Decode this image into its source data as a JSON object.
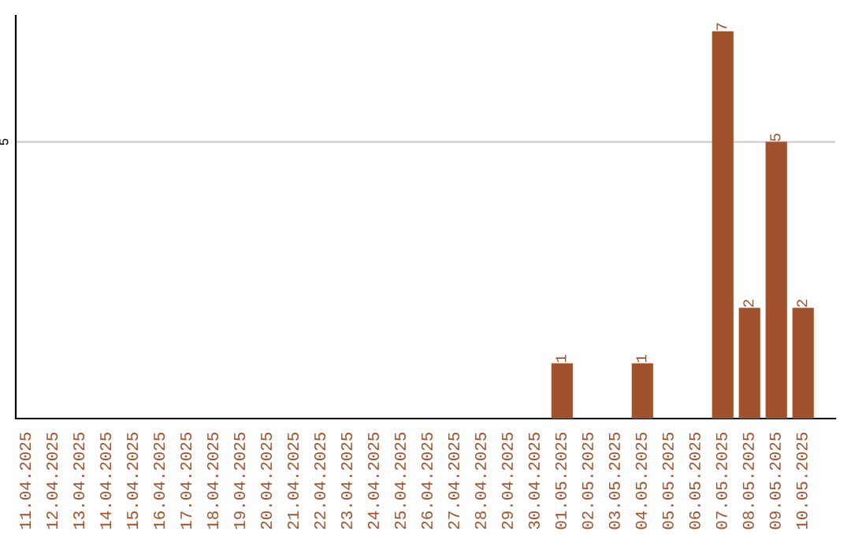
{
  "chart_data": {
    "type": "bar",
    "categories": [
      "11.04.2025",
      "12.04.2025",
      "13.04.2025",
      "14.04.2025",
      "15.04.2025",
      "16.04.2025",
      "17.04.2025",
      "18.04.2025",
      "19.04.2025",
      "20.04.2025",
      "21.04.2025",
      "22.04.2025",
      "23.04.2025",
      "24.04.2025",
      "25.04.2025",
      "26.04.2025",
      "27.04.2025",
      "28.04.2025",
      "29.04.2025",
      "30.04.2025",
      "01.05.2025",
      "02.05.2025",
      "03.05.2025",
      "04.05.2025",
      "05.05.2025",
      "06.05.2025",
      "07.05.2025",
      "08.05.2025",
      "09.05.2025",
      "10.05.2025"
    ],
    "values": [
      null,
      null,
      null,
      null,
      null,
      null,
      null,
      null,
      null,
      null,
      null,
      null,
      null,
      null,
      null,
      null,
      null,
      null,
      null,
      null,
      1,
      null,
      null,
      1,
      null,
      null,
      7,
      2,
      5,
      2
    ],
    "value_labels": [
      null,
      null,
      null,
      null,
      null,
      null,
      null,
      null,
      null,
      null,
      null,
      null,
      null,
      null,
      null,
      null,
      null,
      null,
      null,
      null,
      "1",
      null,
      null,
      "1",
      null,
      null,
      "7",
      "2",
      "5",
      "2"
    ],
    "color": "#a0522d",
    "ref_lines": [
      {
        "axis": "y",
        "value": 5,
        "label": "5",
        "color": "#cccccc"
      }
    ]
  }
}
